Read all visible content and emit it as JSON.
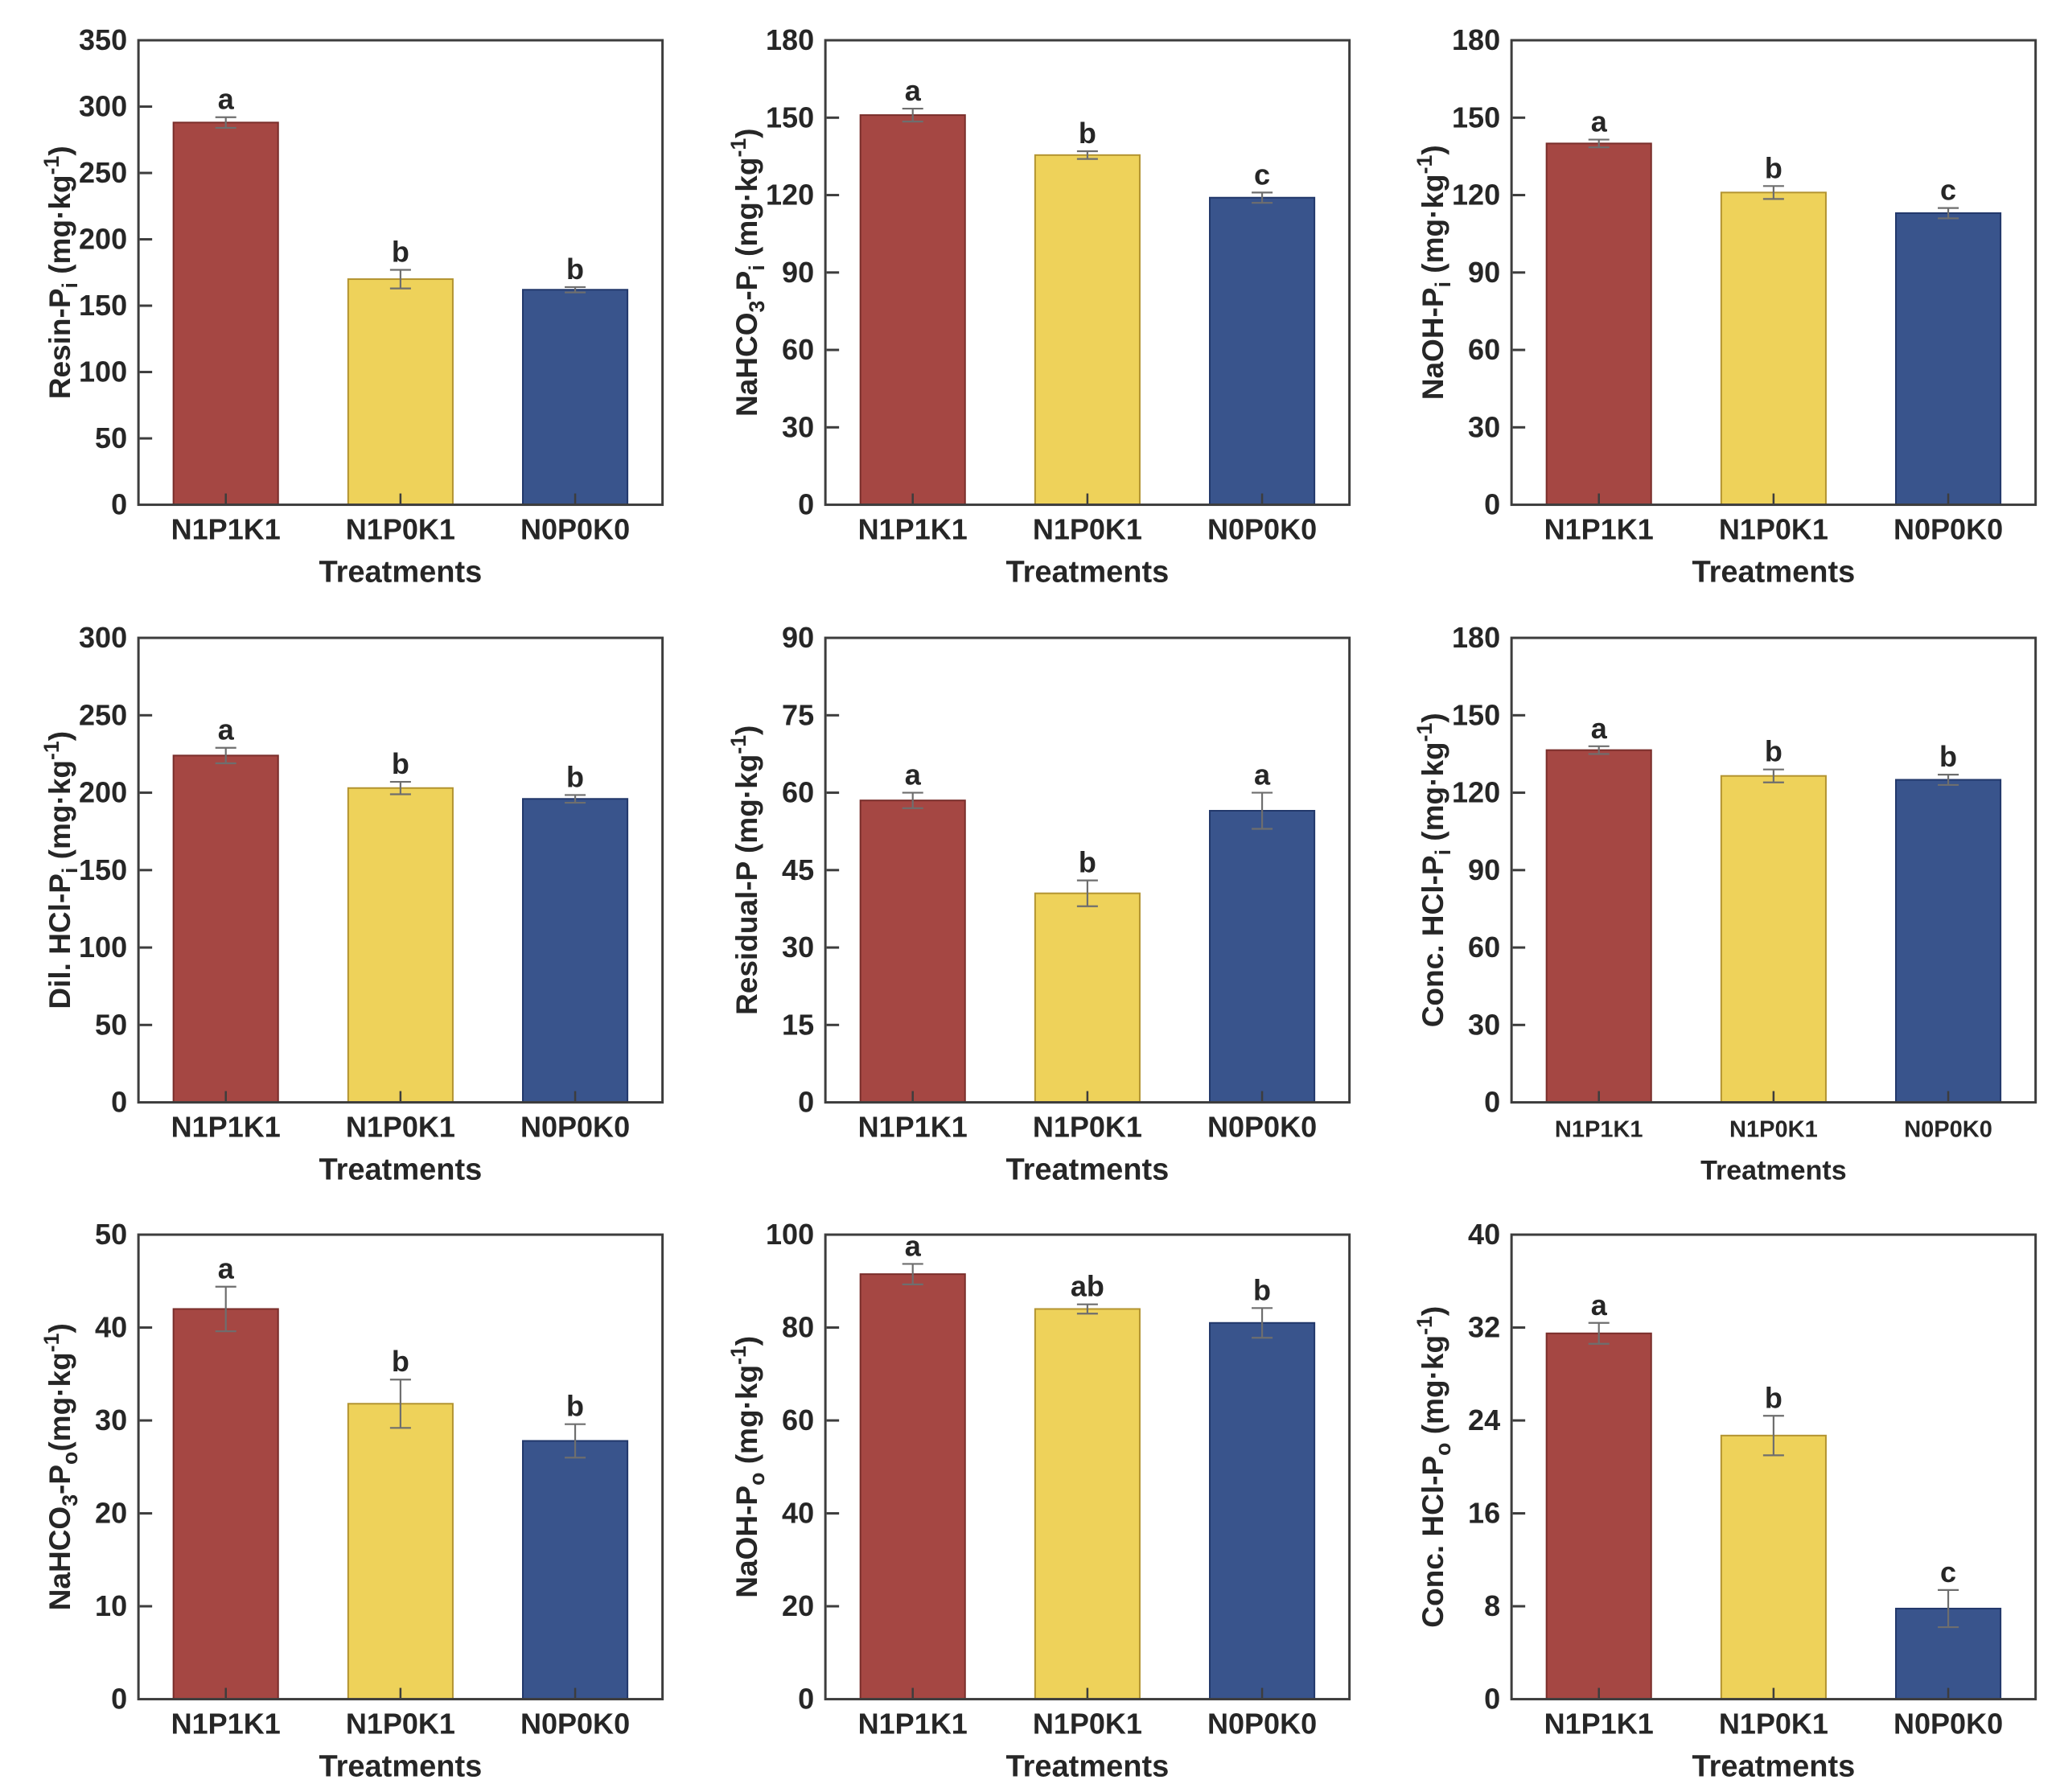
{
  "figure": {
    "description": "3x3 grid of bar charts of soil phosphorus fractions under fertilization treatments",
    "background": "#ffffff"
  },
  "palette": {
    "bar_fills": [
      "#A54743",
      "#EED25A",
      "#39548C"
    ],
    "bar_edges": [
      "#7A2E2B",
      "#B39431",
      "#22386B"
    ],
    "axis_color": "#3D3D3D",
    "text_color": "#262626",
    "error_bar_color": "#6E6E6E"
  },
  "chart_data": [
    {
      "type": "bar",
      "title": "",
      "ylabel": "Resin-P_{i} (mg·kg^{-1})",
      "xlabel": "Treatments",
      "categories": [
        "N1P1K1",
        "N1P0K1",
        "N0P0K0"
      ],
      "values": [
        288,
        170,
        162
      ],
      "errors": [
        4,
        7,
        2
      ],
      "letters": [
        "a",
        "b",
        "b"
      ],
      "ylim": [
        0,
        350
      ],
      "ytick_step": 50,
      "grid": false,
      "legend": "none"
    },
    {
      "type": "bar",
      "title": "",
      "ylabel": "NaHCO_{3}-P_{i} (mg·kg^{-1})",
      "xlabel": "Treatments",
      "categories": [
        "N1P1K1",
        "N1P0K1",
        "N0P0K0"
      ],
      "values": [
        151,
        135.5,
        119
      ],
      "errors": [
        2.5,
        1.5,
        2
      ],
      "letters": [
        "a",
        "b",
        "c"
      ],
      "ylim": [
        0,
        180
      ],
      "ytick_step": 30,
      "grid": false,
      "legend": "none"
    },
    {
      "type": "bar",
      "title": "",
      "ylabel": "NaOH-P_{i} (mg·kg^{-1})",
      "xlabel": "Treatments",
      "categories": [
        "N1P1K1",
        "N1P0K1",
        "N0P0K0"
      ],
      "values": [
        140,
        121,
        113
      ],
      "errors": [
        1.5,
        2.5,
        2
      ],
      "letters": [
        "a",
        "b",
        "c"
      ],
      "ylim": [
        0,
        180
      ],
      "ytick_step": 30,
      "grid": false,
      "legend": "none"
    },
    {
      "type": "bar",
      "title": "",
      "ylabel": "Dil. HCl-P_{i} (mg·kg^{-1})",
      "xlabel": "Treatments",
      "categories": [
        "N1P1K1",
        "N1P0K1",
        "N0P0K0"
      ],
      "values": [
        224,
        203,
        196
      ],
      "errors": [
        5,
        4,
        2.5
      ],
      "letters": [
        "a",
        "b",
        "b"
      ],
      "ylim": [
        0,
        300
      ],
      "ytick_step": 50,
      "grid": false,
      "legend": "none"
    },
    {
      "type": "bar",
      "title": "",
      "ylabel": "Residual-P (mg·kg^{-1})",
      "xlabel": "Treatments",
      "categories": [
        "N1P1K1",
        "N1P0K1",
        "N0P0K0"
      ],
      "values": [
        58.5,
        40.5,
        56.5
      ],
      "errors": [
        1.5,
        2.5,
        3.5
      ],
      "letters": [
        "a",
        "b",
        "a"
      ],
      "ylim": [
        0,
        90
      ],
      "ytick_step": 15,
      "grid": false,
      "legend": "none"
    },
    {
      "type": "bar",
      "title": "",
      "ylabel": "Conc. HCl-P_{i} (mg·kg^{-1})",
      "xlabel": "Treatments",
      "categories": [
        "N1P1K1",
        "N1P0K1",
        "N0P0K0"
      ],
      "values": [
        136.5,
        126.5,
        125
      ],
      "errors": [
        1.5,
        2.5,
        2
      ],
      "letters": [
        "a",
        "b",
        "b"
      ],
      "ylim": [
        0,
        180
      ],
      "ytick_step": 30,
      "grid": false,
      "legend": "none"
    },
    {
      "type": "bar",
      "title": "",
      "ylabel": "NaHCO_{3}-P_{o}(mg·kg^{-1})",
      "xlabel": "Treatments",
      "categories": [
        "N1P1K1",
        "N1P0K1",
        "N0P0K0"
      ],
      "values": [
        42,
        31.8,
        27.8
      ],
      "errors": [
        2.4,
        2.6,
        1.8
      ],
      "letters": [
        "a",
        "b",
        "b"
      ],
      "ylim": [
        0,
        50
      ],
      "ytick_step": 10,
      "grid": false,
      "legend": "none"
    },
    {
      "type": "bar",
      "title": "",
      "ylabel": "NaOH-P_{o} (mg·kg^{-1})",
      "xlabel": "Treatments",
      "categories": [
        "N1P1K1",
        "N1P0K1",
        "N0P0K0"
      ],
      "values": [
        91.5,
        84,
        81
      ],
      "errors": [
        2.2,
        1,
        3.2
      ],
      "letters": [
        "a",
        "ab",
        "b"
      ],
      "ylim": [
        0,
        100
      ],
      "ytick_step": 20,
      "grid": false,
      "legend": "none"
    },
    {
      "type": "bar",
      "title": "",
      "ylabel": "Conc. HCl-P_{o} (mg·kg^{-1})",
      "xlabel": "Treatments",
      "categories": [
        "N1P1K1",
        "N1P0K1",
        "N0P0K0"
      ],
      "values": [
        31.5,
        22.7,
        7.8
      ],
      "errors": [
        0.9,
        1.7,
        1.6
      ],
      "letters": [
        "a",
        "b",
        "c"
      ],
      "ylim": [
        0,
        40
      ],
      "ytick_step": 8,
      "grid": false,
      "legend": "none"
    }
  ]
}
